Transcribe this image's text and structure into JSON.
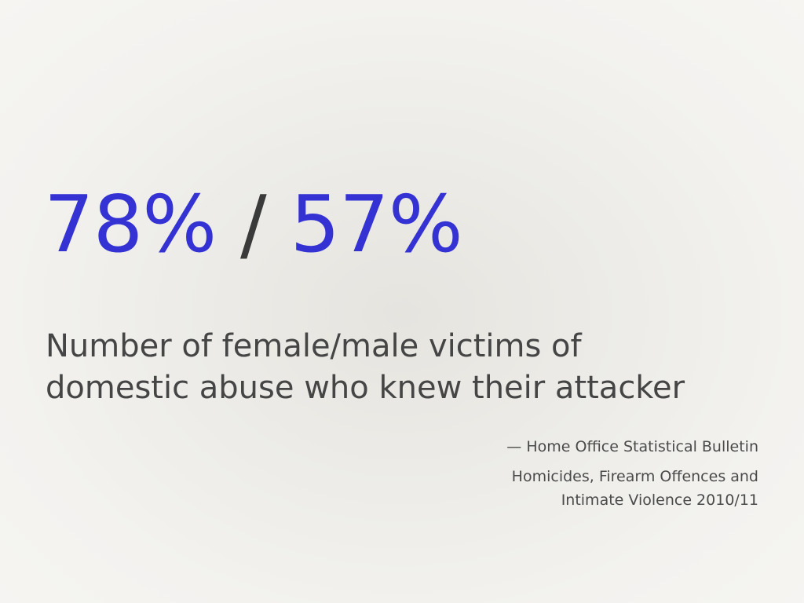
{
  "headline": {
    "female_pct": "78%",
    "separator": " / ",
    "male_pct": "57%"
  },
  "caption": {
    "line1": "Number of female/male victims of",
    "line2": "domestic abuse who knew their attacker"
  },
  "attribution": {
    "source": "— Home Office Statistical Bulletin",
    "publication_line1": "Homicides, Firearm Offences and",
    "publication_line2": "Intimate Violence 2010/11"
  },
  "colors": {
    "accent": "#3532d4",
    "text": "#454545",
    "background": "#f3f2ef"
  }
}
